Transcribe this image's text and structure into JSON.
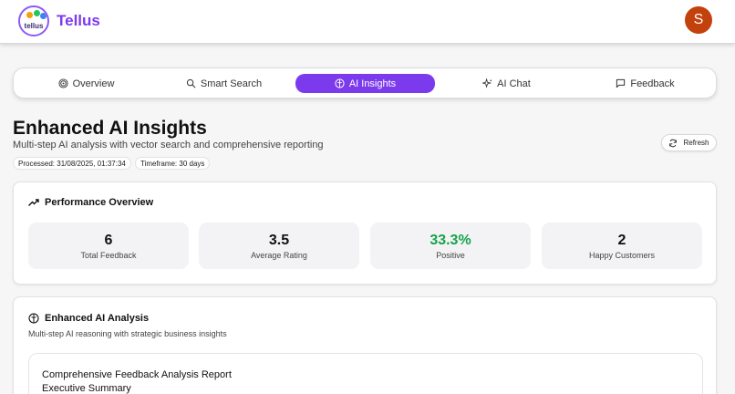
{
  "app": {
    "brand": "Tellus",
    "logo_text": "tellus",
    "avatar_initial": "S"
  },
  "colors": {
    "accent": "#7c3aed",
    "positive": "#16a34a",
    "avatar_bg": "#c2410c"
  },
  "tabs": [
    {
      "label": "Overview",
      "icon": "target-icon",
      "active": false
    },
    {
      "label": "Smart Search",
      "icon": "search-icon",
      "active": false
    },
    {
      "label": "AI Insights",
      "icon": "brain-icon",
      "active": true
    },
    {
      "label": "AI Chat",
      "icon": "sparkles-icon",
      "active": false
    },
    {
      "label": "Feedback",
      "icon": "message-icon",
      "active": false
    }
  ],
  "page": {
    "title": "Enhanced AI Insights",
    "subtitle": "Multi-step AI analysis with vector search and comprehensive reporting",
    "processed": "Processed: 31/08/2025, 01:37:34",
    "timeframe": "Timeframe: 30 days",
    "refresh_label": "Refresh"
  },
  "performance": {
    "title": "Performance Overview",
    "stats": [
      {
        "value": "6",
        "label": "Total Feedback"
      },
      {
        "value": "3.5",
        "label": "Average Rating"
      },
      {
        "value": "33.3%",
        "label": "Positive"
      },
      {
        "value": "2",
        "label": "Happy Customers"
      }
    ]
  },
  "analysis": {
    "title": "Enhanced AI Analysis",
    "subtitle": "Multi-step AI reasoning with strategic business insights",
    "report_title": "Comprehensive Feedback Analysis Report",
    "report_section": "Executive Summary"
  }
}
